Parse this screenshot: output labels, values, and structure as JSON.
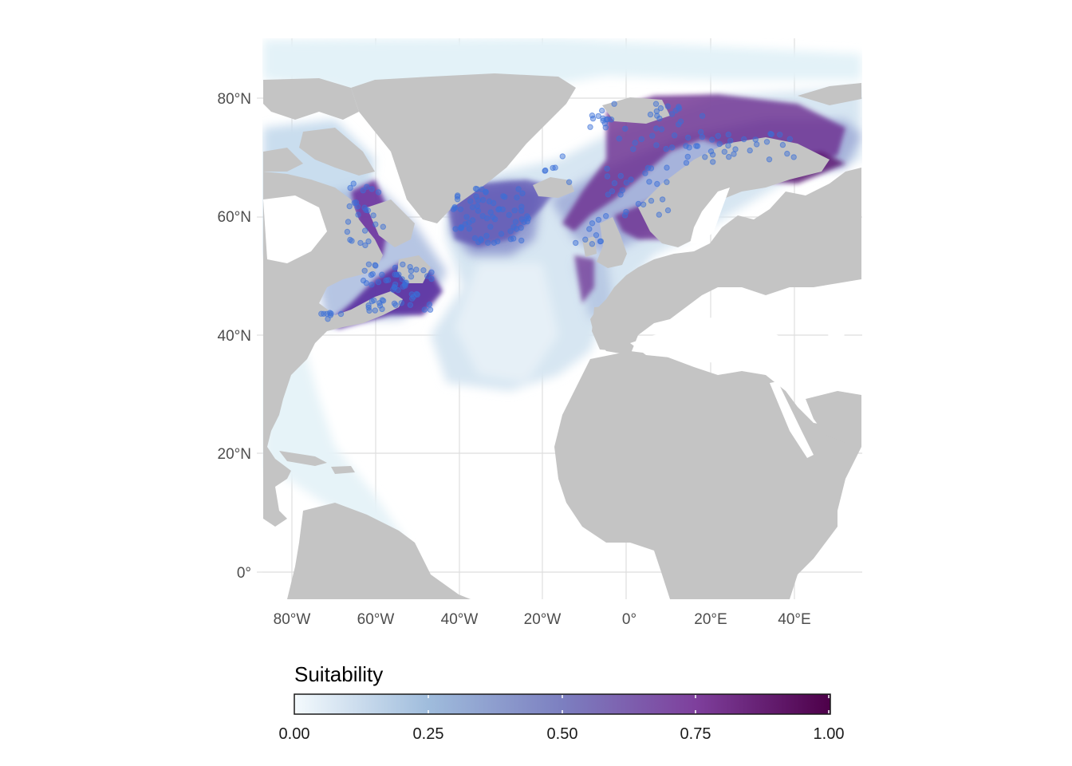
{
  "map": {
    "x_axis_labels": [
      "80°W",
      "60°W",
      "40°W",
      "20°W",
      "0°",
      "20°E",
      "40°E"
    ],
    "y_axis_labels": [
      "80°N",
      "60°N",
      "40°N",
      "20°N",
      "0°"
    ],
    "land_color": "#c4c4c4",
    "ocean_color": "#ffffff",
    "grid_color": "#dedede",
    "occurrence_point_color": "#3a6fd8"
  },
  "legend": {
    "title": "Suitability",
    "ticks": [
      "0.00",
      "0.25",
      "0.50",
      "0.75",
      "1.00"
    ],
    "gradient_stops": [
      {
        "offset": 0,
        "color": "#f4fafd"
      },
      {
        "offset": 0.25,
        "color": "#9fbcdc"
      },
      {
        "offset": 0.5,
        "color": "#7c7fc0"
      },
      {
        "offset": 0.75,
        "color": "#7e3f9c"
      },
      {
        "offset": 1,
        "color": "#4d0049"
      }
    ]
  }
}
